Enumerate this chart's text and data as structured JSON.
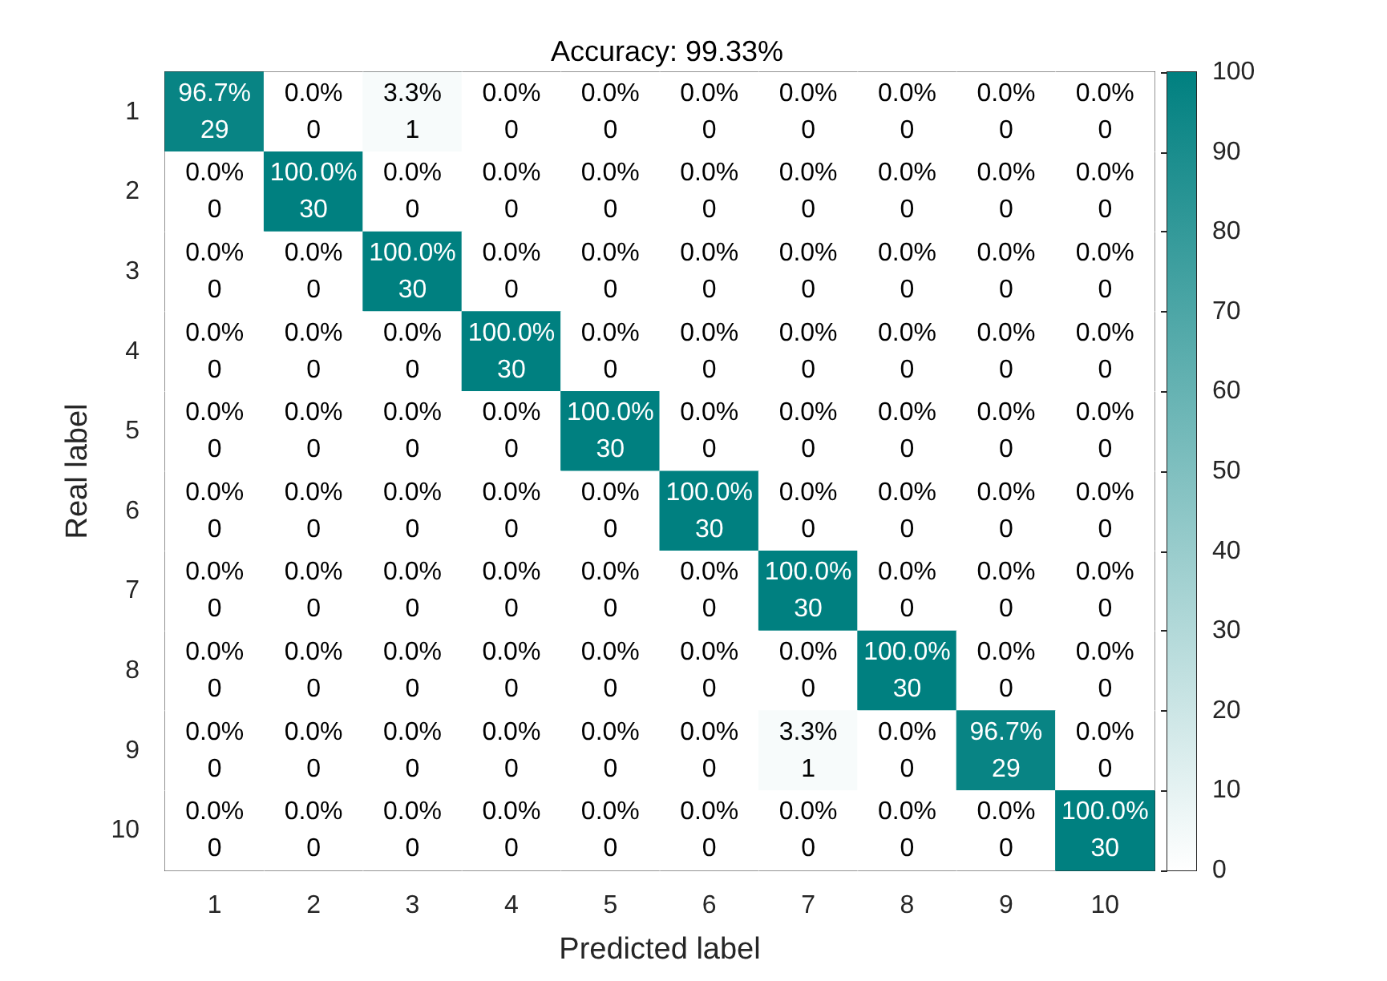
{
  "chart_data": {
    "type": "heatmap",
    "title": "Accuracy: 99.33%",
    "xlabel": "Predicted label",
    "ylabel": "Real label",
    "categories": [
      "1",
      "2",
      "3",
      "4",
      "5",
      "6",
      "7",
      "8",
      "9",
      "10"
    ],
    "y_categories": [
      "1",
      "2",
      "3",
      "4",
      "5",
      "6",
      "7",
      "8",
      "9",
      "10"
    ],
    "cells": [
      [
        96.7,
        0,
        3.3,
        0,
        0,
        0,
        0,
        0,
        0,
        0
      ],
      [
        0,
        100,
        0,
        0,
        0,
        0,
        0,
        0,
        0,
        0
      ],
      [
        0,
        0,
        100,
        0,
        0,
        0,
        0,
        0,
        0,
        0
      ],
      [
        0,
        0,
        0,
        100,
        0,
        0,
        0,
        0,
        0,
        0
      ],
      [
        0,
        0,
        0,
        0,
        100,
        0,
        0,
        0,
        0,
        0
      ],
      [
        0,
        0,
        0,
        0,
        0,
        100,
        0,
        0,
        0,
        0
      ],
      [
        0,
        0,
        0,
        0,
        0,
        0,
        100,
        0,
        0,
        0
      ],
      [
        0,
        0,
        0,
        0,
        0,
        0,
        0,
        100,
        0,
        0
      ],
      [
        0,
        0,
        0,
        0,
        0,
        0,
        3.3,
        0,
        96.7,
        0
      ],
      [
        0,
        0,
        0,
        0,
        0,
        0,
        0,
        0,
        0,
        100
      ]
    ],
    "cell_labels": [
      [
        "96.7%\n29",
        "0.0%\n0",
        "3.3%\n1",
        "0.0%\n0",
        "0.0%\n0",
        "0.0%\n0",
        "0.0%\n0",
        "0.0%\n0",
        "0.0%\n0",
        "0.0%\n0"
      ],
      [
        "0.0%\n0",
        "100.0%\n30",
        "0.0%\n0",
        "0.0%\n0",
        "0.0%\n0",
        "0.0%\n0",
        "0.0%\n0",
        "0.0%\n0",
        "0.0%\n0",
        "0.0%\n0"
      ],
      [
        "0.0%\n0",
        "0.0%\n0",
        "100.0%\n30",
        "0.0%\n0",
        "0.0%\n0",
        "0.0%\n0",
        "0.0%\n0",
        "0.0%\n0",
        "0.0%\n0",
        "0.0%\n0"
      ],
      [
        "0.0%\n0",
        "0.0%\n0",
        "0.0%\n0",
        "100.0%\n30",
        "0.0%\n0",
        "0.0%\n0",
        "0.0%\n0",
        "0.0%\n0",
        "0.0%\n0",
        "0.0%\n0"
      ],
      [
        "0.0%\n0",
        "0.0%\n0",
        "0.0%\n0",
        "0.0%\n0",
        "100.0%\n30",
        "0.0%\n0",
        "0.0%\n0",
        "0.0%\n0",
        "0.0%\n0",
        "0.0%\n0"
      ],
      [
        "0.0%\n0",
        "0.0%\n0",
        "0.0%\n0",
        "0.0%\n0",
        "0.0%\n0",
        "100.0%\n30",
        "0.0%\n0",
        "0.0%\n0",
        "0.0%\n0",
        "0.0%\n0"
      ],
      [
        "0.0%\n0",
        "0.0%\n0",
        "0.0%\n0",
        "0.0%\n0",
        "0.0%\n0",
        "0.0%\n0",
        "100.0%\n30",
        "0.0%\n0",
        "0.0%\n0",
        "0.0%\n0"
      ],
      [
        "0.0%\n0",
        "0.0%\n0",
        "0.0%\n0",
        "0.0%\n0",
        "0.0%\n0",
        "0.0%\n0",
        "0.0%\n0",
        "100.0%\n30",
        "0.0%\n0",
        "0.0%\n0"
      ],
      [
        "0.0%\n0",
        "0.0%\n0",
        "0.0%\n0",
        "0.0%\n0",
        "0.0%\n0",
        "0.0%\n0",
        "3.3%\n1",
        "0.0%\n0",
        "96.7%\n29",
        "0.0%\n0"
      ],
      [
        "0.0%\n0",
        "0.0%\n0",
        "0.0%\n0",
        "0.0%\n0",
        "0.0%\n0",
        "0.0%\n0",
        "0.0%\n0",
        "0.0%\n0",
        "0.0%\n0",
        "100.0%\n30"
      ]
    ],
    "colors": [
      "#ffffff",
      "#008080"
    ],
    "clim": [
      0,
      100
    ],
    "cticks": [
      0,
      10,
      20,
      30,
      40,
      50,
      60,
      70,
      80,
      90,
      100
    ]
  }
}
